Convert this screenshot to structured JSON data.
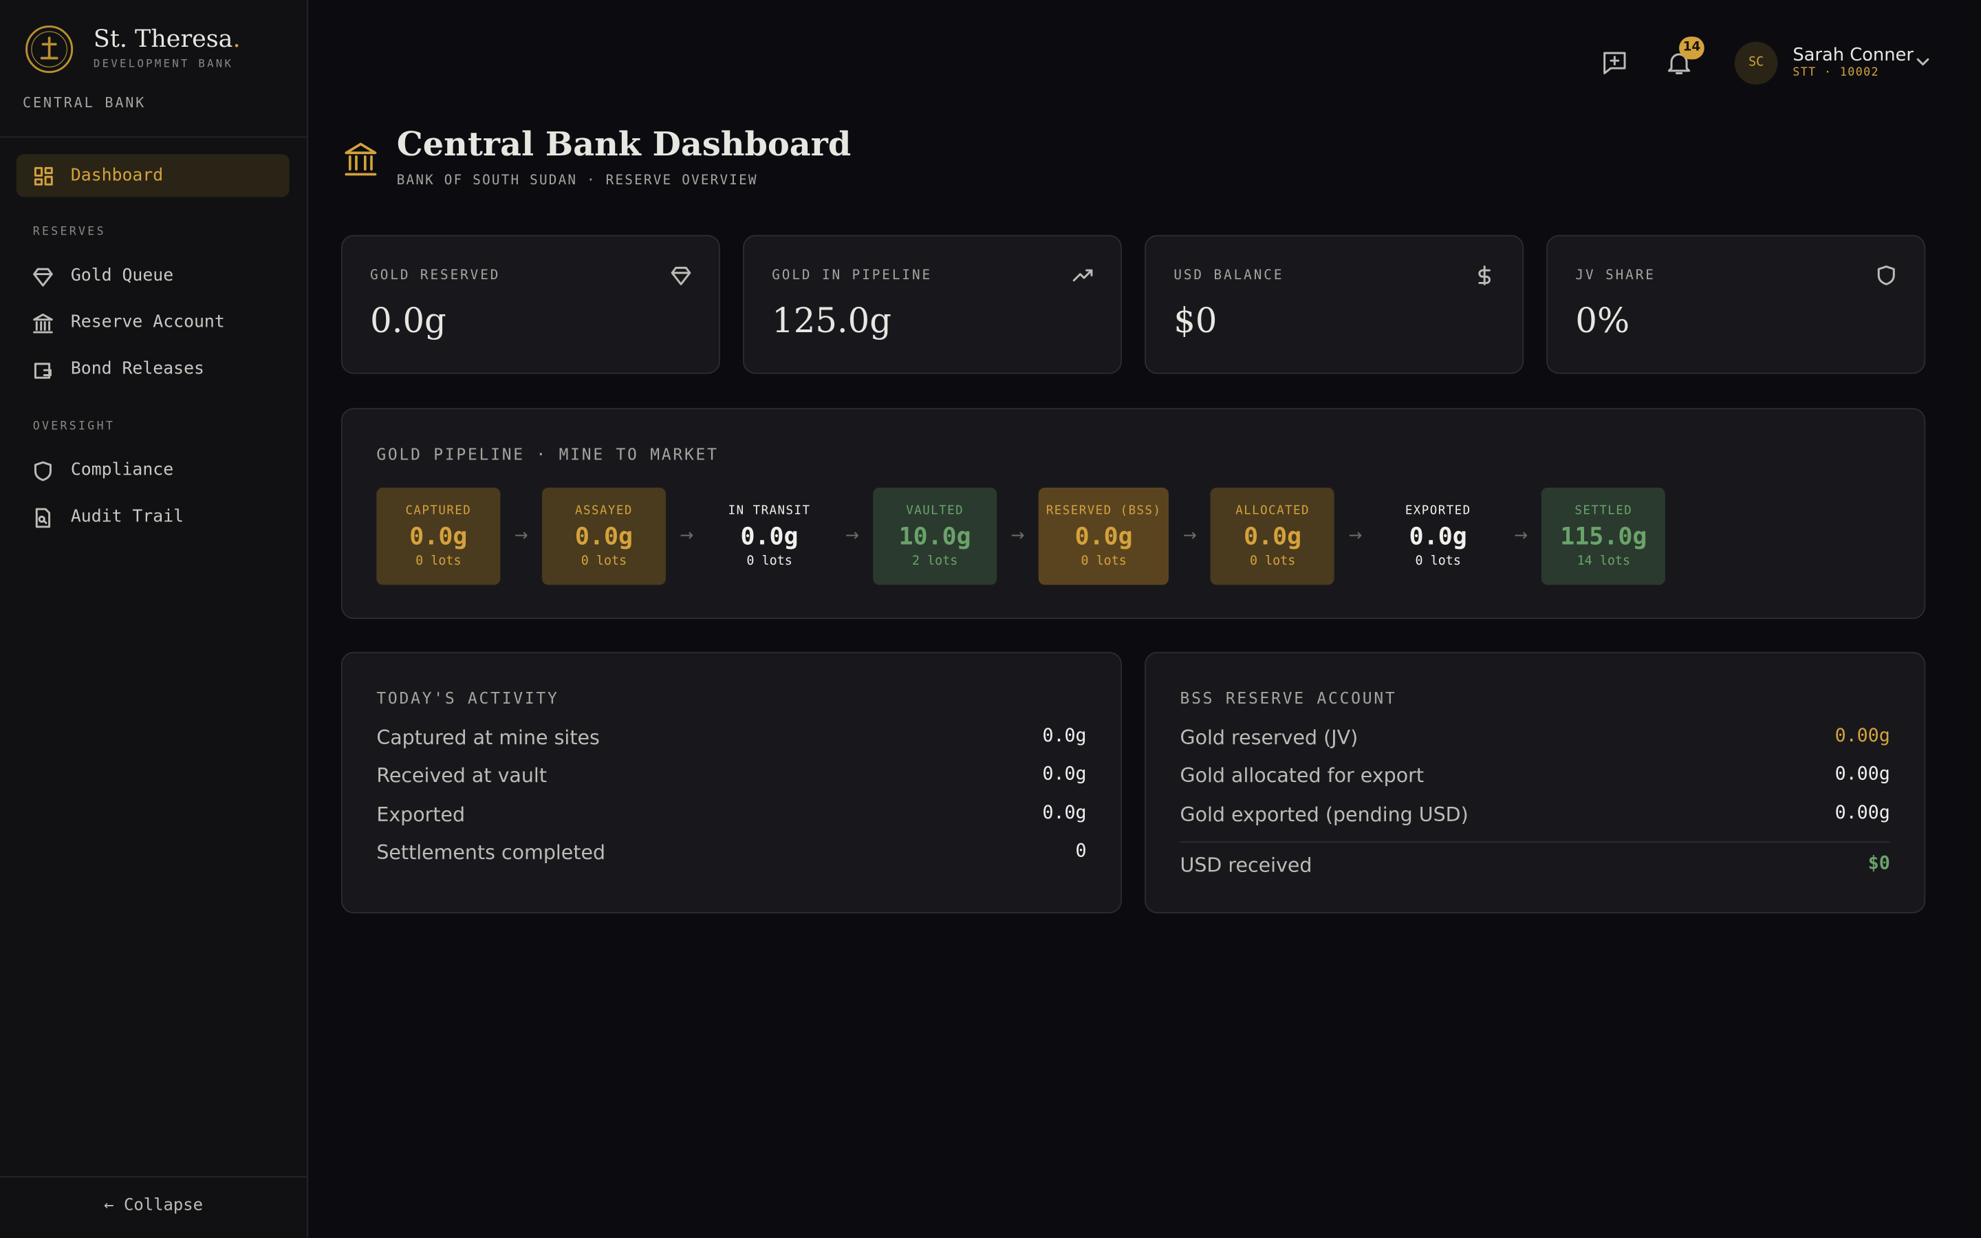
{
  "brand": {
    "name": "St. Theresa",
    "dot": ".",
    "subtitle": "DEVELOPMENT BANK",
    "section": "CENTRAL BANK"
  },
  "nav": {
    "active": "Dashboard",
    "groups": [
      {
        "label": "RESERVES",
        "items": [
          "Gold Queue",
          "Reserve Account",
          "Bond Releases"
        ]
      },
      {
        "label": "OVERSIGHT",
        "items": [
          "Compliance",
          "Audit Trail"
        ]
      }
    ],
    "collapse": "← Collapse"
  },
  "header": {
    "notifications": "14",
    "initials": "SC",
    "user": "Sarah Conner",
    "user_id": "STT · 10002"
  },
  "page": {
    "title": "Central Bank Dashboard",
    "subtitle": "BANK OF SOUTH SUDAN · RESERVE OVERVIEW"
  },
  "stats": [
    {
      "label": "GOLD RESERVED",
      "value": "0.0g"
    },
    {
      "label": "GOLD IN PIPELINE",
      "value": "125.0g"
    },
    {
      "label": "USD BALANCE",
      "value": "$0"
    },
    {
      "label": "JV SHARE",
      "value": "0%"
    }
  ],
  "pipeline": {
    "title": "GOLD PIPELINE · MINE TO MARKET",
    "stages": [
      {
        "label": "CAPTURED",
        "value": "0.0g",
        "lots": "0 lots",
        "tone": "gold"
      },
      {
        "label": "ASSAYED",
        "value": "0.0g",
        "lots": "0 lots",
        "tone": "gold"
      },
      {
        "label": "IN TRANSIT",
        "value": "0.0g",
        "lots": "0 lots",
        "tone": "plain"
      },
      {
        "label": "VAULTED",
        "value": "10.0g",
        "lots": "2 lots",
        "tone": "green"
      },
      {
        "label": "RESERVED (BSS)",
        "value": "0.0g",
        "lots": "0 lots",
        "tone": "gold-strong"
      },
      {
        "label": "ALLOCATED",
        "value": "0.0g",
        "lots": "0 lots",
        "tone": "gold"
      },
      {
        "label": "EXPORTED",
        "value": "0.0g",
        "lots": "0 lots",
        "tone": "plain"
      },
      {
        "label": "SETTLED",
        "value": "115.0g",
        "lots": "14 lots",
        "tone": "green"
      }
    ]
  },
  "activity": {
    "title": "TODAY'S ACTIVITY",
    "rows": [
      {
        "label": "Captured at mine sites",
        "value": "0.0g"
      },
      {
        "label": "Received at vault",
        "value": "0.0g"
      },
      {
        "label": "Exported",
        "value": "0.0g"
      },
      {
        "label": "Settlements completed",
        "value": "0"
      }
    ]
  },
  "reserve": {
    "title": "BSS RESERVE ACCOUNT",
    "rows": [
      {
        "label": "Gold reserved (JV)",
        "value": "0.00g",
        "tone": "gold"
      },
      {
        "label": "Gold allocated for export",
        "value": "0.00g",
        "tone": "plain"
      },
      {
        "label": "Gold exported (pending USD)",
        "value": "0.00g",
        "tone": "plain"
      }
    ],
    "total": {
      "label": "USD received",
      "value": "$0",
      "tone": "green"
    }
  }
}
